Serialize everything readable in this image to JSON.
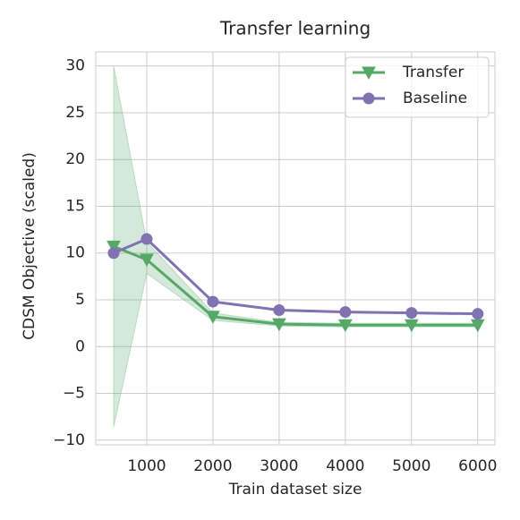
{
  "chart_data": {
    "type": "line",
    "title": "Transfer learning",
    "x_label": "Train dataset size",
    "y_label": "CDSM Objective (scaled)",
    "x": [
      500,
      1000,
      2000,
      3000,
      4000,
      5000,
      6000
    ],
    "series": [
      {
        "name": "Transfer",
        "color": "#55a868",
        "marker": "triangle-down",
        "values": [
          10.7,
          9.3,
          3.2,
          2.4,
          2.3,
          2.3,
          2.3
        ],
        "upper": [
          30,
          11.2,
          3.6,
          2.6,
          2.5,
          2.5,
          2.5
        ],
        "lower": [
          -8.6,
          7.8,
          2.8,
          2.2,
          2.1,
          2.1,
          2.1
        ]
      },
      {
        "name": "Baseline",
        "color": "#8172b2",
        "marker": "circle",
        "values": [
          10.0,
          11.5,
          4.8,
          3.9,
          3.7,
          3.6,
          3.5
        ]
      }
    ],
    "xlim": [
      230,
      6260
    ],
    "ylim": [
      -10.5,
      31.5
    ],
    "xticks": [
      1000,
      2000,
      3000,
      4000,
      5000,
      6000
    ],
    "yticks": [
      {
        "value": -10,
        "label": "−10"
      },
      {
        "value": -5,
        "label": "−5"
      },
      0,
      5,
      10,
      15,
      20,
      25,
      30
    ],
    "grid": true,
    "legend": "upper-right"
  }
}
